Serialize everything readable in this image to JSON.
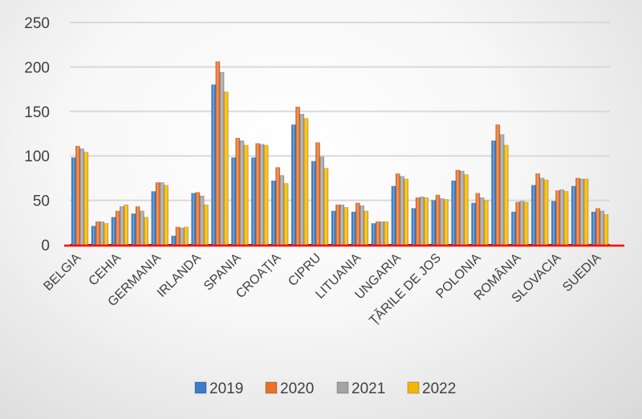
{
  "chart_data": {
    "type": "bar",
    "title": "",
    "xlabel": "",
    "ylabel": "",
    "ylim": [
      0,
      250
    ],
    "yticks": [
      0,
      50,
      100,
      150,
      200,
      250
    ],
    "grid": true,
    "legend_position": "bottom",
    "categories": [
      "BELGIA",
      "",
      "CEHIA",
      "",
      "GERMANIA",
      "",
      "IRLANDA",
      "",
      "SPANIA",
      "",
      "CROAȚIA",
      "",
      "CIPRU",
      "",
      "LITUANIA",
      "",
      "UNGARIA",
      "",
      "ȚĂRILE DE JOS",
      "",
      "POLONIA",
      "",
      "ROMÂNIA",
      "",
      "SLOVACIA",
      "",
      "SUEDIA"
    ],
    "series": [
      {
        "name": "2019",
        "color": "#3a7ec8",
        "values": [
          98,
          21,
          31,
          35,
          60,
          10,
          58,
          180,
          98,
          98,
          72,
          135,
          94,
          38,
          37,
          24,
          66,
          41,
          50,
          72,
          47,
          117,
          37,
          67,
          49,
          66,
          37
        ]
      },
      {
        "name": "2020",
        "color": "#e8722a",
        "values": [
          111,
          26,
          38,
          43,
          70,
          20,
          59,
          206,
          120,
          114,
          87,
          155,
          115,
          45,
          47,
          26,
          80,
          53,
          56,
          84,
          58,
          135,
          48,
          80,
          61,
          75,
          41
        ]
      },
      {
        "name": "2021",
        "color": "#a3a3a3",
        "values": [
          108,
          26,
          43,
          38,
          70,
          19,
          55,
          194,
          117,
          113,
          78,
          147,
          99,
          45,
          44,
          26,
          77,
          54,
          52,
          83,
          53,
          124,
          49,
          75,
          62,
          74,
          38
        ]
      },
      {
        "name": "2022",
        "color": "#f2b705",
        "values": [
          104,
          24,
          45,
          31,
          67,
          20,
          45,
          172,
          112,
          112,
          69,
          142,
          86,
          42,
          38,
          26,
          74,
          53,
          51,
          79,
          50,
          112,
          48,
          73,
          60,
          74,
          34
        ]
      }
    ],
    "baseline_color": "#ff0000"
  }
}
